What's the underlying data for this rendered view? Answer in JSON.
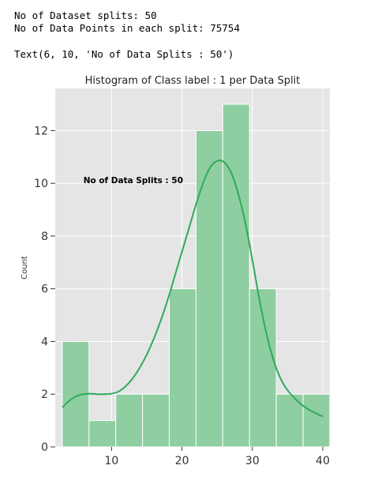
{
  "output": {
    "line1": "No of Dataset splits: 50",
    "line2": "No of Data Points in each split: 75754",
    "line3": "Text(6, 10, 'No of Data Splits : 50')"
  },
  "chart_data": {
    "type": "bar",
    "title": "Histogram of Class label : 1 per Data Split",
    "xlabel": "",
    "ylabel": "Count",
    "xlim": [
      2,
      41
    ],
    "ylim": [
      0,
      13.6
    ],
    "xticks": [
      10,
      20,
      30,
      40
    ],
    "yticks": [
      0,
      2,
      4,
      6,
      8,
      10,
      12
    ],
    "bins": [
      {
        "x0": 3.0,
        "x1": 6.8,
        "count": 4
      },
      {
        "x0": 6.8,
        "x1": 10.6,
        "count": 1
      },
      {
        "x0": 10.6,
        "x1": 14.4,
        "count": 2
      },
      {
        "x0": 14.4,
        "x1": 18.2,
        "count": 2
      },
      {
        "x0": 18.2,
        "x1": 22.0,
        "count": 6
      },
      {
        "x0": 22.0,
        "x1": 25.8,
        "count": 12
      },
      {
        "x0": 25.8,
        "x1": 29.6,
        "count": 13
      },
      {
        "x0": 29.6,
        "x1": 33.4,
        "count": 6
      },
      {
        "x0": 33.4,
        "x1": 37.2,
        "count": 2
      },
      {
        "x0": 37.2,
        "x1": 41.0,
        "count": 2
      }
    ],
    "kde": {
      "x": [
        3,
        4,
        5,
        6,
        7,
        8,
        9,
        10,
        11,
        12,
        13,
        14,
        15,
        16,
        17,
        18,
        19,
        20,
        21,
        22,
        23,
        24,
        25,
        26,
        27,
        28,
        29,
        30,
        31,
        32,
        33,
        34,
        35,
        36,
        37,
        38,
        39,
        40
      ],
      "y": [
        1.5,
        1.75,
        1.92,
        2.0,
        2.02,
        2.0,
        2.0,
        2.02,
        2.1,
        2.3,
        2.6,
        3.0,
        3.5,
        4.1,
        4.8,
        5.6,
        6.5,
        7.4,
        8.3,
        9.2,
        10.0,
        10.6,
        10.85,
        10.8,
        10.4,
        9.6,
        8.5,
        7.1,
        5.6,
        4.3,
        3.3,
        2.6,
        2.15,
        1.85,
        1.6,
        1.42,
        1.28,
        1.15
      ]
    },
    "annotation": {
      "x": 6,
      "y": 10,
      "text": "No of Data Splits : 50"
    },
    "grid": true,
    "bar_color": "#8fcea0",
    "kde_color": "#2eaa5c",
    "background": "#e5e5e5"
  }
}
